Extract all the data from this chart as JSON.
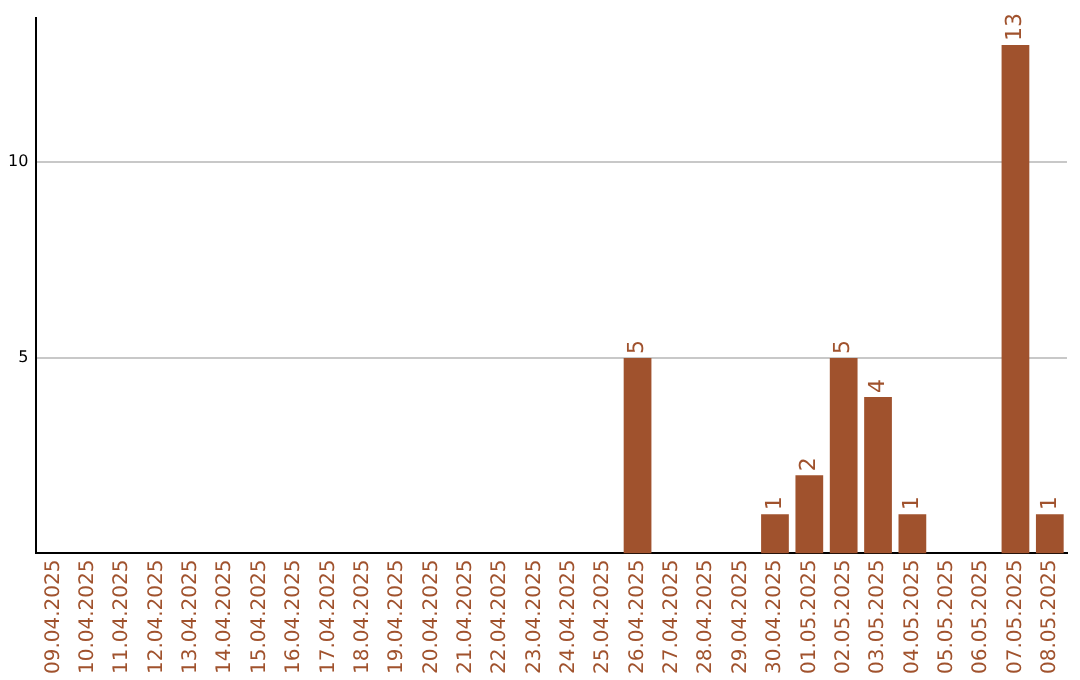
{
  "chart_data": {
    "type": "bar",
    "categories": [
      "09.04.2025",
      "10.04.2025",
      "11.04.2025",
      "12.04.2025",
      "13.04.2025",
      "14.04.2025",
      "15.04.2025",
      "16.04.2025",
      "17.04.2025",
      "18.04.2025",
      "19.04.2025",
      "20.04.2025",
      "21.04.2025",
      "22.04.2025",
      "23.04.2025",
      "24.04.2025",
      "25.04.2025",
      "26.04.2025",
      "27.04.2025",
      "28.04.2025",
      "29.04.2025",
      "30.04.2025",
      "01.05.2025",
      "02.05.2025",
      "03.05.2025",
      "04.05.2025",
      "05.05.2025",
      "06.05.2025",
      "07.05.2025",
      "08.05.2025"
    ],
    "values": [
      0,
      0,
      0,
      0,
      0,
      0,
      0,
      0,
      0,
      0,
      0,
      0,
      0,
      0,
      0,
      0,
      0,
      5,
      0,
      0,
      0,
      1,
      2,
      5,
      4,
      1,
      0,
      0,
      13,
      1
    ],
    "value_labels": [
      null,
      null,
      null,
      null,
      null,
      null,
      null,
      null,
      null,
      null,
      null,
      null,
      null,
      null,
      null,
      null,
      null,
      "5",
      null,
      null,
      null,
      "1",
      "2",
      "5",
      "4",
      "1",
      null,
      null,
      "13",
      "1"
    ],
    "color": "#a0522d",
    "ylim": [
      0,
      13.7
    ],
    "yticks": [
      5,
      10
    ],
    "grid": "y"
  }
}
